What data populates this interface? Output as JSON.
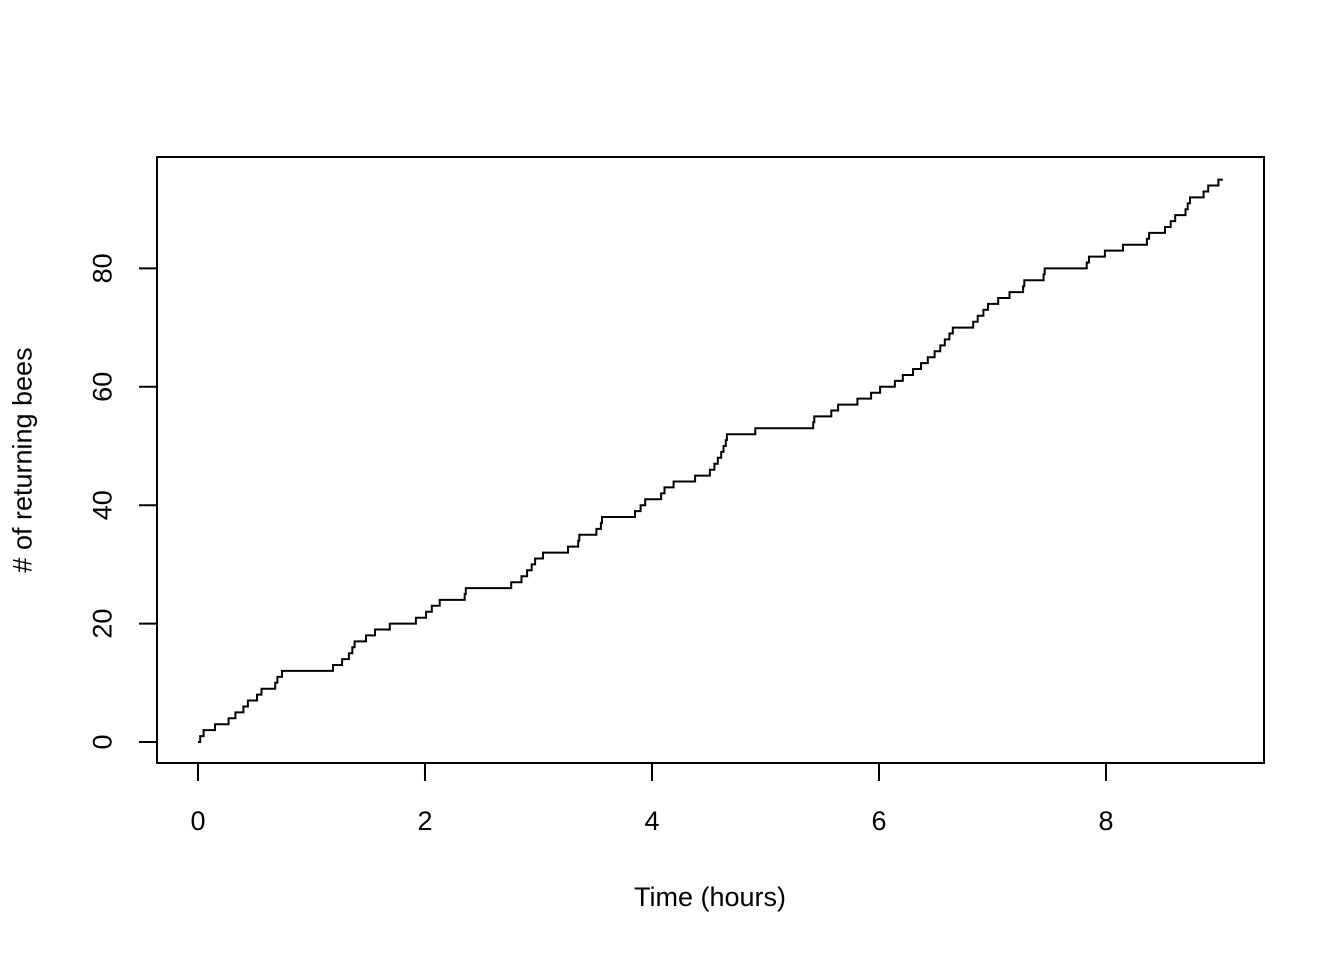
{
  "chart_data": {
    "type": "line",
    "line_style": "step",
    "title": "",
    "xlabel": "Time (hours)",
    "ylabel": "# of returning bees",
    "x_ticks": [
      0,
      2,
      4,
      6,
      8
    ],
    "y_ticks": [
      0,
      20,
      40,
      60,
      80
    ],
    "xlim": [
      -0.361,
      9.392
    ],
    "ylim": [
      -3.55,
      98.82
    ],
    "grid": false,
    "legend": "none",
    "background_color": "#ffffff",
    "line_color": "#000000",
    "axis_color": "#000000",
    "series": [
      {
        "start_t": 0,
        "start_count": 0,
        "end_t": 9.03,
        "final_count": 95,
        "times": [
          0.02,
          0.05,
          0.15,
          0.27,
          0.33,
          0.4,
          0.44,
          0.52,
          0.56,
          0.68,
          0.7,
          0.74,
          1.19,
          1.27,
          1.33,
          1.36,
          1.38,
          1.48,
          1.56,
          1.69,
          1.92,
          2.01,
          2.06,
          2.13,
          2.35,
          2.36,
          2.76,
          2.85,
          2.9,
          2.94,
          2.97,
          3.04,
          3.26,
          3.35,
          3.36,
          3.51,
          3.55,
          3.56,
          3.85,
          3.9,
          3.94,
          4.08,
          4.11,
          4.19,
          4.38,
          4.51,
          4.55,
          4.58,
          4.61,
          4.63,
          4.65,
          4.66,
          4.91,
          5.42,
          5.43,
          5.58,
          5.64,
          5.81,
          5.93,
          6.01,
          6.14,
          6.21,
          6.3,
          6.37,
          6.43,
          6.49,
          6.54,
          6.58,
          6.62,
          6.65,
          6.83,
          6.87,
          6.92,
          6.96,
          7.05,
          7.15,
          7.27,
          7.28,
          7.45,
          7.46,
          7.83,
          7.85,
          7.99,
          8.15,
          8.36,
          8.38,
          8.52,
          8.57,
          8.61,
          8.7,
          8.72,
          8.74,
          8.86,
          8.9,
          8.99
        ],
        "counts": [
          1,
          2,
          3,
          4,
          5,
          6,
          7,
          8,
          9,
          10,
          11,
          12,
          13,
          14,
          15,
          16,
          17,
          18,
          19,
          20,
          21,
          22,
          23,
          24,
          25,
          26,
          27,
          28,
          29,
          30,
          31,
          32,
          33,
          34,
          35,
          36,
          37,
          38,
          39,
          40,
          41,
          42,
          43,
          44,
          45,
          46,
          47,
          48,
          49,
          50,
          51,
          52,
          53,
          54,
          55,
          56,
          57,
          58,
          59,
          60,
          61,
          62,
          63,
          64,
          65,
          66,
          67,
          68,
          69,
          70,
          71,
          72,
          73,
          74,
          75,
          76,
          77,
          78,
          79,
          80,
          81,
          82,
          83,
          84,
          85,
          86,
          87,
          88,
          89,
          90,
          91,
          92,
          93,
          94,
          95
        ]
      }
    ]
  }
}
